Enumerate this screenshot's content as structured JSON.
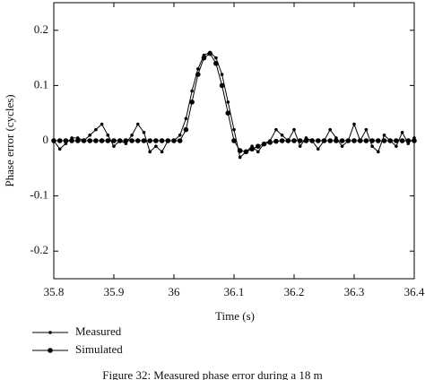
{
  "chart_data": {
    "type": "line",
    "x_label": "Time (s)",
    "y_label": "Phase error (cycles)",
    "caption": "Figure 32: Measured phase error during a 18 m",
    "x": [
      35.8,
      35.81,
      35.82,
      35.83,
      35.84,
      35.85,
      35.86,
      35.87,
      35.88,
      35.89,
      35.9,
      35.91,
      35.92,
      35.93,
      35.94,
      35.95,
      35.96,
      35.97,
      35.98,
      35.99,
      36.0,
      36.01,
      36.02,
      36.03,
      36.04,
      36.05,
      36.06,
      36.07,
      36.08,
      36.09,
      36.1,
      36.11,
      36.12,
      36.13,
      36.14,
      36.15,
      36.16,
      36.17,
      36.18,
      36.19,
      36.2,
      36.21,
      36.22,
      36.23,
      36.24,
      36.25,
      36.26,
      36.27,
      36.28,
      36.29,
      36.3,
      36.31,
      36.32,
      36.33,
      36.34,
      36.35,
      36.36,
      36.37,
      36.38,
      36.39,
      36.4
    ],
    "series": [
      {
        "name": "Measured",
        "color": "#000000",
        "marker_size": 1.8,
        "values": [
          0,
          -0.015,
          -0.005,
          0.005,
          0.005,
          0,
          0.01,
          0.02,
          0.03,
          0.01,
          -0.01,
          0,
          -0.005,
          0.01,
          0.03,
          0.015,
          -0.02,
          -0.01,
          -0.02,
          0,
          0,
          0.01,
          0.04,
          0.09,
          0.13,
          0.155,
          0.16,
          0.15,
          0.12,
          0.07,
          0.02,
          -0.03,
          -0.02,
          -0.01,
          -0.02,
          -0.005,
          0,
          0.02,
          0.01,
          0,
          0.02,
          -0.01,
          0.005,
          0,
          -0.015,
          0,
          0.02,
          0.005,
          -0.01,
          0,
          0.03,
          0,
          0.02,
          -0.01,
          -0.02,
          0.01,
          0,
          -0.01,
          0.015,
          -0.005,
          0.005
        ]
      },
      {
        "name": "Simulated",
        "color": "#000000",
        "marker_size": 2.8,
        "values": [
          0,
          0,
          0,
          0,
          0,
          0,
          0,
          0,
          0,
          0,
          0,
          0,
          0,
          0,
          0,
          0,
          0,
          0,
          0,
          0,
          0,
          0,
          0.02,
          0.07,
          0.12,
          0.15,
          0.158,
          0.14,
          0.1,
          0.05,
          0,
          -0.018,
          -0.02,
          -0.015,
          -0.01,
          -0.006,
          -0.003,
          -0.001,
          0,
          0,
          0,
          0,
          0,
          0,
          0,
          0,
          0,
          0,
          0,
          0,
          0,
          0,
          0,
          0,
          0,
          0,
          0,
          0,
          0,
          0,
          0
        ]
      }
    ],
    "xlim": [
      35.8,
      36.4
    ],
    "xticks": [
      35.8,
      35.9,
      36,
      36.1,
      36.2,
      36.3,
      36.4
    ],
    "ylim": [
      -0.25,
      0.25
    ],
    "yticks": [
      -0.2,
      -0.1,
      0,
      0.1,
      0.2
    ]
  }
}
